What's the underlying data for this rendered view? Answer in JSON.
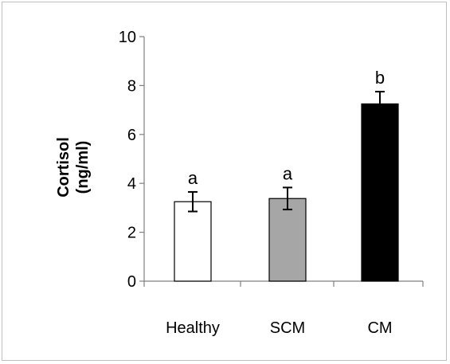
{
  "chart_data": {
    "type": "bar",
    "title": "",
    "xlabel": "",
    "ylabel": [
      "Cortisol",
      "(ng/ml)"
    ],
    "ylim": [
      0,
      10
    ],
    "yticks": [
      0,
      2,
      4,
      6,
      8,
      10
    ],
    "categories": [
      "Healthy",
      "SCM",
      "CM"
    ],
    "values": [
      3.25,
      3.38,
      7.25
    ],
    "errors": [
      0.4,
      0.45,
      0.5
    ],
    "significance_labels": [
      "a",
      "a",
      "b"
    ],
    "bar_colors": [
      "#ffffff",
      "#a6a6a6",
      "#000000"
    ],
    "bar_edge_color": "#000000",
    "grid": false,
    "legend": "none"
  }
}
